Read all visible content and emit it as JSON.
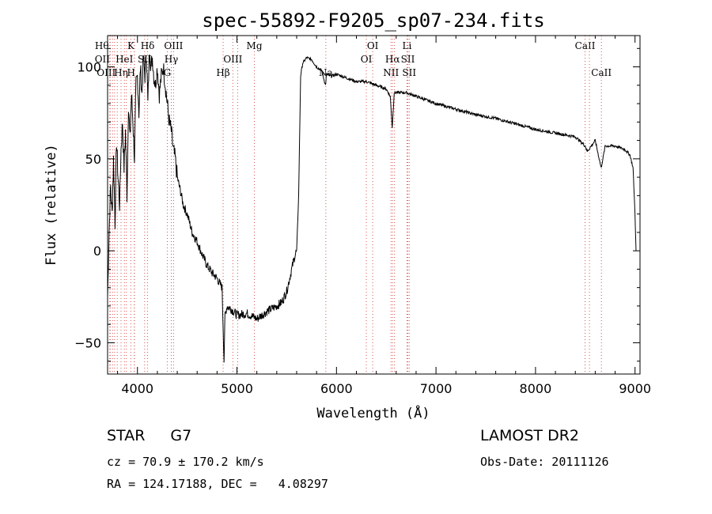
{
  "chart_data": {
    "type": "line",
    "title": "spec-55892-F9205_sp07-234.fits",
    "xlabel": "Wavelength (Å)",
    "ylabel": "Flux (relative)",
    "xlim": [
      3700,
      9050
    ],
    "ylim": [
      -67,
      117
    ],
    "xticks": [
      4000,
      5000,
      6000,
      7000,
      8000,
      9000
    ],
    "yticks": [
      -50,
      0,
      50,
      100
    ],
    "grid": false,
    "series": [
      {
        "color": "#000000",
        "x": [
          3700,
          3715,
          3730,
          3745,
          3760,
          3775,
          3790,
          3805,
          3820,
          3835,
          3850,
          3865,
          3880,
          3895,
          3910,
          3925,
          3940,
          3955,
          3970,
          3985,
          4000,
          4015,
          4030,
          4045,
          4060,
          4075,
          4090,
          4105,
          4120,
          4135,
          4150,
          4165,
          4180,
          4200,
          4220,
          4240,
          4260,
          4280,
          4300,
          4320,
          4340,
          4360,
          4380,
          4400,
          4430,
          4460,
          4500,
          4550,
          4600,
          4650,
          4700,
          4750,
          4800,
          4850,
          4870,
          4880,
          4900,
          4950,
          5000,
          5100,
          5200,
          5300,
          5400,
          5450,
          5500,
          5550,
          5580,
          5600,
          5620,
          5640,
          5660,
          5700,
          5750,
          5800,
          5850,
          5890,
          5900,
          5950,
          6000,
          6100,
          6200,
          6300,
          6400,
          6500,
          6540,
          6560,
          6580,
          6700,
          6800,
          6900,
          7000,
          7200,
          7400,
          7600,
          7800,
          8000,
          8200,
          8400,
          8500,
          8520,
          8600,
          8660,
          8700,
          8800,
          8900,
          8950,
          8980,
          9000,
          9010
        ],
        "y": [
          -25,
          10,
          35,
          20,
          50,
          15,
          60,
          40,
          25,
          55,
          70,
          45,
          65,
          30,
          80,
          60,
          85,
          70,
          50,
          90,
          95,
          75,
          100,
          85,
          105,
          95,
          108,
          80,
          110,
          100,
          105,
          95,
          90,
          100,
          85,
          95,
          100,
          90,
          80,
          70,
          65,
          55,
          50,
          40,
          33,
          25,
          20,
          10,
          5,
          -2,
          -8,
          -12,
          -15,
          -20,
          -60,
          -35,
          -30,
          -32,
          -35,
          -34,
          -37,
          -33,
          -30,
          -28,
          -22,
          -10,
          -3,
          0,
          30,
          95,
          102,
          105,
          104,
          100,
          98,
          90,
          96,
          95,
          96,
          94,
          92,
          92,
          90,
          88,
          84,
          67,
          86,
          86,
          84,
          82,
          80,
          77,
          74,
          72,
          69,
          66,
          64,
          62,
          57,
          54,
          60,
          45,
          57,
          57,
          55,
          52,
          45,
          20,
          0
        ]
      }
    ],
    "line_markers": [
      {
        "x": 3722,
        "label": "Hθ",
        "row": 0,
        "dx": -10
      },
      {
        "x": 3727,
        "label": "OII",
        "row": 1,
        "dx": -10
      },
      {
        "x": 3750,
        "label": "OIII",
        "row": 2,
        "dx": -8
      },
      {
        "x": 3770,
        "label": "",
        "row": 0
      },
      {
        "x": 3797,
        "label": "",
        "row": 0
      },
      {
        "x": 3835,
        "label": "Hη",
        "row": 2,
        "dx": 0
      },
      {
        "x": 3869,
        "label": "HeI",
        "row": 1,
        "dx": 0
      },
      {
        "x": 3889,
        "label": "",
        "row": 0
      },
      {
        "x": 3934,
        "label": "K",
        "row": 0,
        "dx": 0
      },
      {
        "x": 3968,
        "label": "H",
        "row": 2,
        "dx": -4
      },
      {
        "x": 3970,
        "label": "",
        "row": 0
      },
      {
        "x": 4072,
        "label": "SII",
        "row": 1,
        "dx": 0
      },
      {
        "x": 4102,
        "label": "Hδ",
        "row": 0,
        "dx": 0
      },
      {
        "x": 4300,
        "label": "G",
        "row": 2,
        "dx": 0
      },
      {
        "x": 4340,
        "label": "Hγ",
        "row": 1,
        "dx": 0
      },
      {
        "x": 4363,
        "label": "OIII",
        "row": 0,
        "dx": 0
      },
      {
        "x": 4861,
        "label": "Hβ",
        "row": 2,
        "dx": 0
      },
      {
        "x": 4959,
        "label": "OIII",
        "row": 1,
        "dx": 0
      },
      {
        "x": 5007,
        "label": "",
        "row": 0
      },
      {
        "x": 5175,
        "label": "Mg",
        "row": 0,
        "dx": 0
      },
      {
        "x": 5893,
        "label": "Na",
        "row": 2,
        "dx": 0
      },
      {
        "x": 6300,
        "label": "OI",
        "row": 1,
        "dx": 0
      },
      {
        "x": 6364,
        "label": "OI",
        "row": 0,
        "dx": 0
      },
      {
        "x": 6548,
        "label": "NII",
        "row": 2,
        "dx": 0
      },
      {
        "x": 6563,
        "label": "Hα",
        "row": 1,
        "dx": 0
      },
      {
        "x": 6583,
        "label": "",
        "row": 0
      },
      {
        "x": 6708,
        "label": "Li",
        "row": 0,
        "dx": 0
      },
      {
        "x": 6717,
        "label": "SII",
        "row": 1,
        "dx": 0
      },
      {
        "x": 6731,
        "label": "SII",
        "row": 2,
        "dx": 0
      },
      {
        "x": 8498,
        "label": "CaII",
        "row": 0,
        "dx": 0
      },
      {
        "x": 8542,
        "label": "",
        "row": 0
      },
      {
        "x": 8662,
        "label": "CaII",
        "row": 2,
        "dx": 0
      }
    ]
  },
  "info": {
    "object_type": "STAR",
    "subclass": "G7",
    "survey": "LAMOST DR2",
    "redshift_line": "cz = 70.9 ± 170.2 km/s",
    "obs_date_line": "Obs-Date: 20111126",
    "coords_line": "RA = 124.17188, DEC =   4.08297"
  }
}
